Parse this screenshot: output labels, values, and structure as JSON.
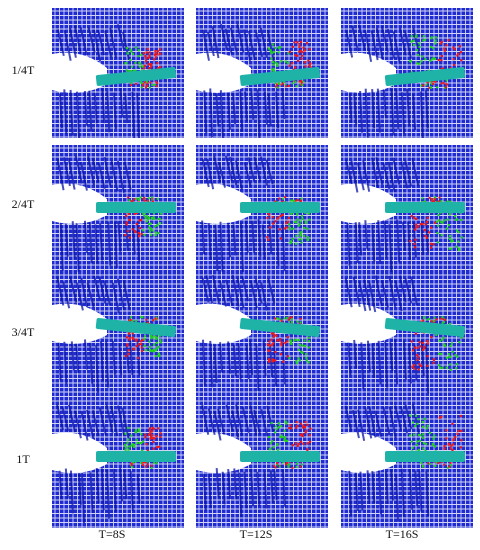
{
  "figure": {
    "row_labels": [
      "1/4T",
      "2/4T",
      "3/4T",
      "1T"
    ],
    "column_labels": [
      "T=8S",
      "T=12S",
      "T=16S"
    ],
    "colors": {
      "particle_blue": "#1f2bd0",
      "particle_dark_blue": "#0a14a8",
      "grid_white": "#ffffff",
      "particle_green": "#1ed11e",
      "particle_red": "#f01818",
      "body_teal": "#1fb3a8"
    }
  }
}
